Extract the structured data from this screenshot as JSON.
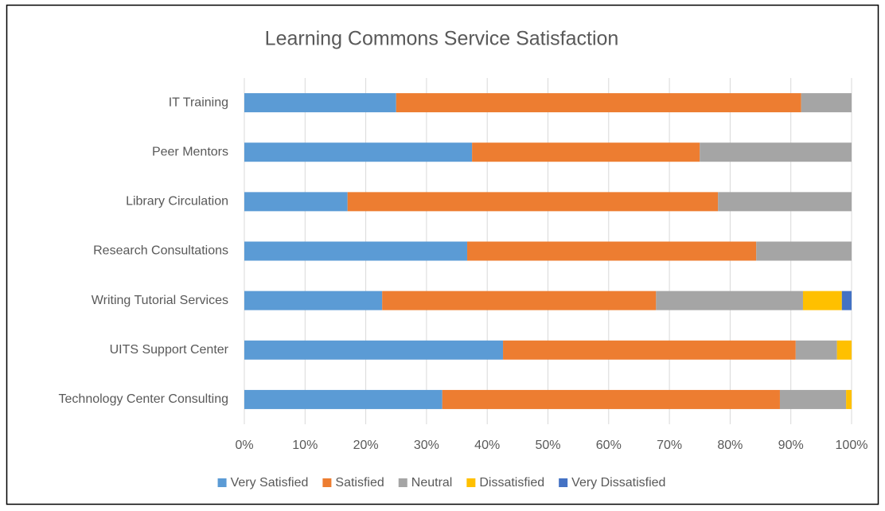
{
  "chart_data": {
    "type": "bar",
    "orientation": "horizontal",
    "stacked": true,
    "title": "Learning Commons Service Satisfaction",
    "categories": [
      "IT Training",
      "Peer Mentors",
      "Library Circulation",
      "Research Consultations",
      "Writing Tutorial Services",
      "UITS Support Center",
      "Technology Center Consulting"
    ],
    "series": [
      {
        "name": "Very Satisfied",
        "color": "#5b9bd5",
        "values": [
          25,
          37.5,
          17,
          36.7,
          22.7,
          42.6,
          32.6
        ]
      },
      {
        "name": "Satisfied",
        "color": "#ed7d31",
        "values": [
          66.7,
          37.5,
          61,
          47.6,
          45.1,
          48.2,
          55.6
        ]
      },
      {
        "name": "Neutral",
        "color": "#a5a5a5",
        "values": [
          8.3,
          25,
          22,
          15.7,
          24.2,
          6.8,
          10.9
        ]
      },
      {
        "name": "Dissatisfied",
        "color": "#ffc000",
        "values": [
          0,
          0,
          0,
          0,
          6.4,
          2.4,
          0.9
        ]
      },
      {
        "name": "Very Dissatisfied",
        "color": "#4472c4",
        "values": [
          0,
          0,
          0,
          0,
          1.6,
          0,
          0
        ]
      }
    ],
    "xlim": [
      0,
      100
    ],
    "xticks": [
      {
        "value": 0,
        "label": "0%"
      },
      {
        "value": 10,
        "label": "10%"
      },
      {
        "value": 20,
        "label": "20%"
      },
      {
        "value": 30,
        "label": "30%"
      },
      {
        "value": 40,
        "label": "40%"
      },
      {
        "value": 50,
        "label": "50%"
      },
      {
        "value": 60,
        "label": "60%"
      },
      {
        "value": 70,
        "label": "70%"
      },
      {
        "value": 80,
        "label": "80%"
      },
      {
        "value": 90,
        "label": "90%"
      },
      {
        "value": 100,
        "label": "100%"
      }
    ],
    "grid": true,
    "legend": "bottom"
  }
}
